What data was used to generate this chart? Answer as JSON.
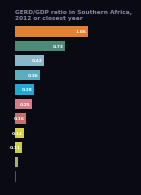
{
  "title": "GERD/GDP ratio in Southern Africa,\n2012 or closest year",
  "title_fontsize": 4.2,
  "values": [
    1.06,
    0.73,
    0.42,
    0.36,
    0.28,
    0.25,
    0.16,
    0.14,
    0.11,
    0.05,
    0.02
  ],
  "labels": [
    "1.06",
    "0.73",
    "0.42",
    "0.36",
    "0.28",
    "0.25",
    "0.16",
    "0.14",
    "0.11",
    "",
    ""
  ],
  "colors": [
    "#e08030",
    "#4e8a78",
    "#8ab8c8",
    "#5aaec0",
    "#20a8d8",
    "#d87888",
    "#c87070",
    "#d8d040",
    "#c8d040",
    "#a8b068",
    "#2858b0"
  ],
  "background_color": "#0a0a12",
  "text_color": "#aaaacc",
  "bar_height": 0.72,
  "xlim": [
    0,
    1.18
  ],
  "label_fontsize": 3.2,
  "title_color": "#8888aa"
}
